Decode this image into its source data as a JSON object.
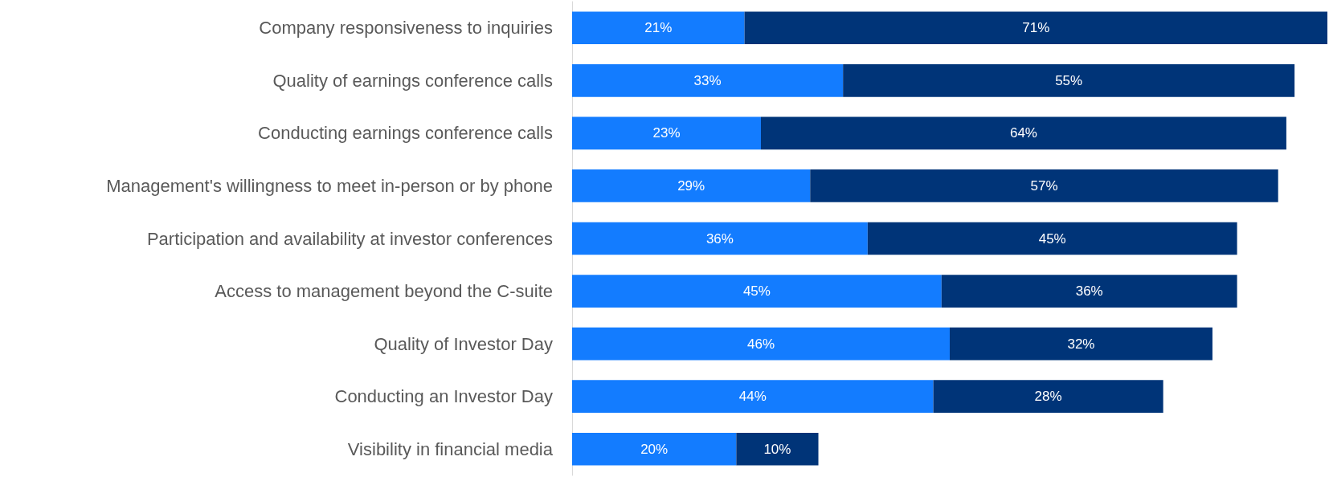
{
  "chart_data": {
    "type": "bar",
    "orientation": "horizontal",
    "stacked": true,
    "categories": [
      "Company responsiveness to inquiries",
      "Quality of earnings conference calls",
      "Conducting earnings conference calls",
      "Management's willingness to meet in-person or by phone",
      "Participation and availability at investor conferences",
      "Access to management beyond the C-suite",
      "Quality of Investor Day",
      "Conducting an Investor Day",
      "Visibility in financial media"
    ],
    "series": [
      {
        "color": "#137cff",
        "values": [
          21,
          33,
          23,
          29,
          36,
          45,
          46,
          44,
          20
        ],
        "value_labels": [
          "21%",
          "33%",
          "23%",
          "29%",
          "36%",
          "45%",
          "46%",
          "44%",
          "20%"
        ]
      },
      {
        "color": "#003478",
        "values": [
          71,
          55,
          64,
          57,
          45,
          36,
          32,
          28,
          10
        ],
        "value_labels": [
          "71%",
          "55%",
          "64%",
          "57%",
          "45%",
          "36%",
          "32%",
          "28%",
          "10%"
        ]
      }
    ]
  }
}
